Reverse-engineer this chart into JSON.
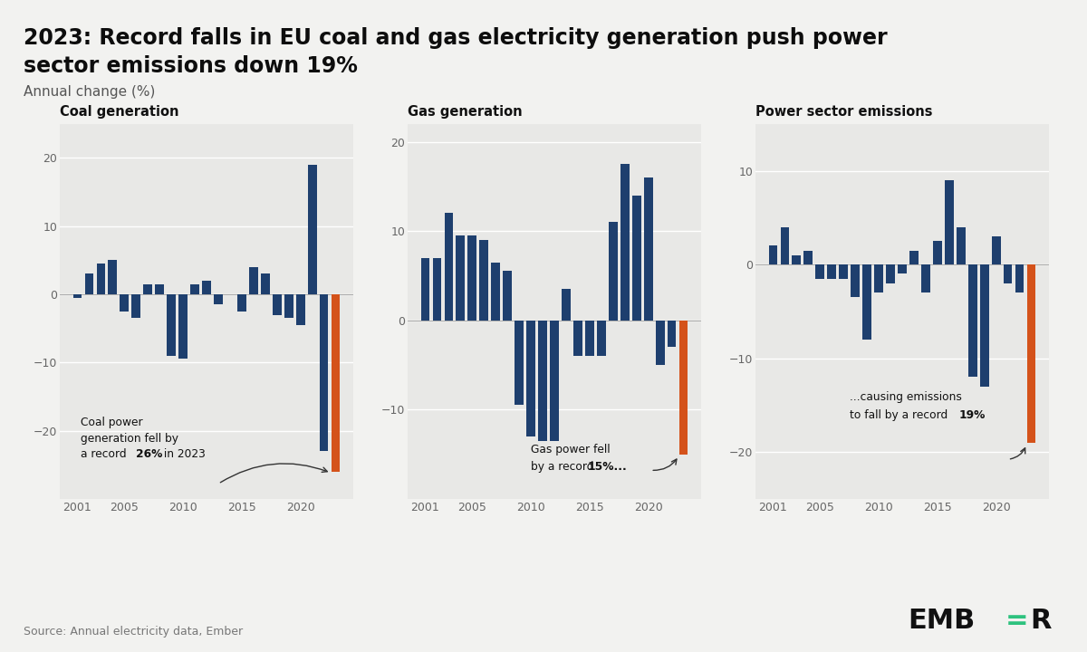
{
  "title_line1": "2023: Record falls in EU coal and gas electricity generation push power",
  "title_line2": "sector emissions down 19%",
  "subtitle": "Annual change (%)",
  "source": "Source: Annual electricity data, Ember",
  "bg_color": "#f2f2f0",
  "panel_bg": "#e8e8e6",
  "blue": "#1e3f6e",
  "orange": "#d4521a",
  "green": "#2ec27e",
  "coal_years": [
    2001,
    2002,
    2003,
    2004,
    2005,
    2006,
    2007,
    2008,
    2009,
    2010,
    2011,
    2012,
    2013,
    2014,
    2015,
    2016,
    2017,
    2018,
    2019,
    2020,
    2021,
    2022,
    2023
  ],
  "coal_values": [
    -0.5,
    3.0,
    4.5,
    5.0,
    -2.5,
    -3.5,
    1.5,
    1.5,
    -9.0,
    -9.5,
    1.5,
    2.0,
    -1.5,
    0.0,
    -2.5,
    4.0,
    3.0,
    -3.0,
    -3.5,
    -4.5,
    19.0,
    -23.0,
    -26.0
  ],
  "coal_ylim": [
    -30,
    25
  ],
  "coal_yticks": [
    -20,
    -10,
    0,
    10,
    20
  ],
  "gas_years": [
    2001,
    2002,
    2003,
    2004,
    2005,
    2006,
    2007,
    2008,
    2009,
    2010,
    2011,
    2012,
    2013,
    2014,
    2015,
    2016,
    2017,
    2018,
    2019,
    2020,
    2021,
    2022,
    2023
  ],
  "gas_values": [
    7.0,
    7.0,
    12.0,
    9.5,
    9.5,
    9.0,
    6.5,
    5.5,
    -9.5,
    -13.0,
    -13.5,
    -13.5,
    3.5,
    -4.0,
    -4.0,
    -4.0,
    11.0,
    17.5,
    14.0,
    16.0,
    -5.0,
    -3.0,
    -15.0
  ],
  "gas_ylim": [
    -20,
    22
  ],
  "gas_yticks": [
    -10,
    0,
    10,
    20
  ],
  "emis_years": [
    2001,
    2002,
    2003,
    2004,
    2005,
    2006,
    2007,
    2008,
    2009,
    2010,
    2011,
    2012,
    2013,
    2014,
    2015,
    2016,
    2017,
    2018,
    2019,
    2020,
    2021,
    2022,
    2023
  ],
  "emis_values": [
    2.0,
    4.0,
    1.0,
    1.5,
    -1.5,
    -1.5,
    -1.5,
    -3.5,
    -8.0,
    -3.0,
    -2.0,
    -1.0,
    1.5,
    -3.0,
    2.5,
    9.0,
    4.0,
    -12.0,
    -13.0,
    3.0,
    -2.0,
    -3.0,
    -19.0
  ],
  "emis_ylim": [
    -25,
    15
  ],
  "emis_yticks": [
    -20,
    -10,
    0,
    10
  ],
  "panel_titles": [
    "Coal generation",
    "Gas generation",
    "Power sector emissions"
  ]
}
